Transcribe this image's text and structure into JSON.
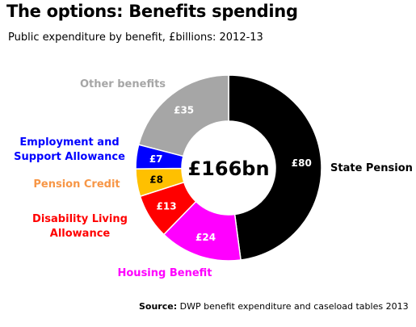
{
  "title": "The options: Benefits spending",
  "subtitle": "Public expenditure by benefit, £billions: 2012-13",
  "source_label": "Source:",
  "source_text": "DWP benefit expenditure and caseload tables 2013",
  "chart_data": {
    "type": "pie",
    "variant": "donut",
    "center_label": "£166bn",
    "total": 166,
    "unit": "£bn",
    "slices": [
      {
        "label": "State Pension",
        "value": 80,
        "value_label": "£80",
        "color": "#000000",
        "label_color": "#000000"
      },
      {
        "label": "Housing Benefit",
        "value": 24,
        "value_label": "£24",
        "color": "#ff00ff",
        "label_color": "#ff00ff"
      },
      {
        "label": "Disability Living Allowance",
        "value": 13,
        "value_label": "£13",
        "color": "#ff0000",
        "label_color": "#ff0000"
      },
      {
        "label": "Pension Credit",
        "value": 8,
        "value_label": "£8",
        "color": "#ffc000",
        "label_color": "#f79646"
      },
      {
        "label": "Employment and Support Allowance",
        "value": 7,
        "value_label": "£7",
        "color": "#0000ff",
        "label_color": "#0000ff"
      },
      {
        "label": "Other benefits",
        "value": 35,
        "value_label": "£35",
        "color": "#a6a6a6",
        "label_color": "#a6a6a6"
      }
    ]
  }
}
